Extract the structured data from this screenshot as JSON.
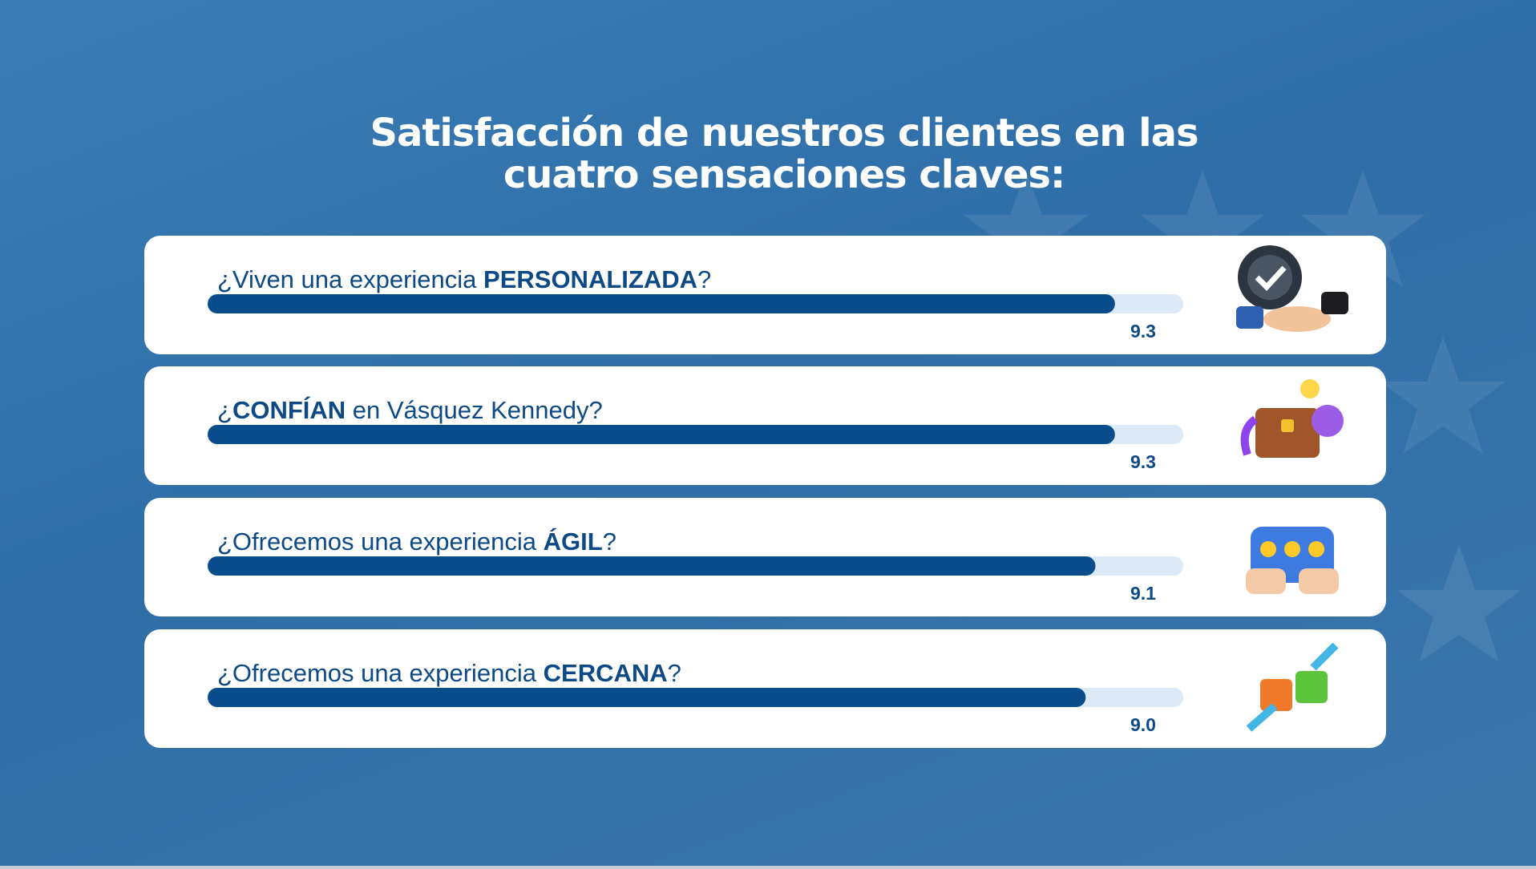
{
  "chart_data": {
    "type": "bar",
    "title": "Satisfacción de nuestros clientes en las cuatro sensaciones claves:",
    "categories": [
      [
        "¿Viven una experiencia ",
        "PERSONALIZADA",
        "?"
      ],
      [
        "¿",
        "CONFÍAN",
        " en Vásquez Kennedy?"
      ],
      [
        "¿Ofrecemos una experiencia ",
        "ÁGIL",
        "?"
      ],
      [
        "¿Ofrecemos una experiencia ",
        "CERCANA",
        "?"
      ]
    ],
    "values": [
      9.3,
      9.3,
      9.1,
      9.0
    ],
    "value_labels": [
      "9.3",
      "9.3",
      "9.1",
      "9.0"
    ],
    "xlim": [
      0,
      10
    ],
    "color": "#0a4d8c"
  }
}
